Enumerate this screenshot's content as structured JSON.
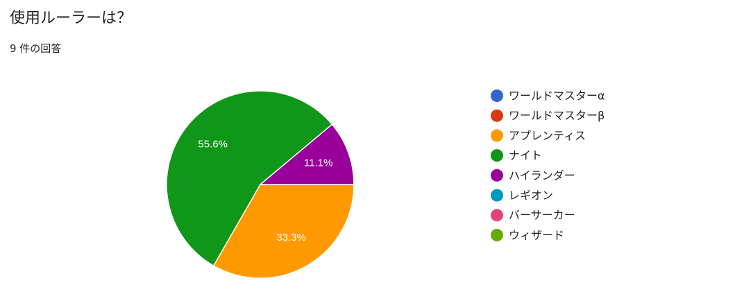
{
  "chart_data": {
    "type": "pie",
    "title": "使用ルーラーは？",
    "subtitle": "9 件の回答",
    "categories": [
      "ワールドマスターα",
      "ワールドマスターβ",
      "アプレンティス",
      "ナイト",
      "ハイランダー",
      "レギオン",
      "バーサーカー",
      "ウィザード"
    ],
    "values": [
      0,
      0,
      33.3,
      55.6,
      11.1,
      0,
      0,
      0
    ],
    "value_labels": [
      null,
      null,
      "33.3%",
      "55.6%",
      "11.1%",
      null,
      null,
      null
    ],
    "colors": [
      "#3366cc",
      "#dc3912",
      "#ff9900",
      "#109618",
      "#990099",
      "#0099c6",
      "#dd4477",
      "#66aa00"
    ],
    "legend": "right"
  }
}
